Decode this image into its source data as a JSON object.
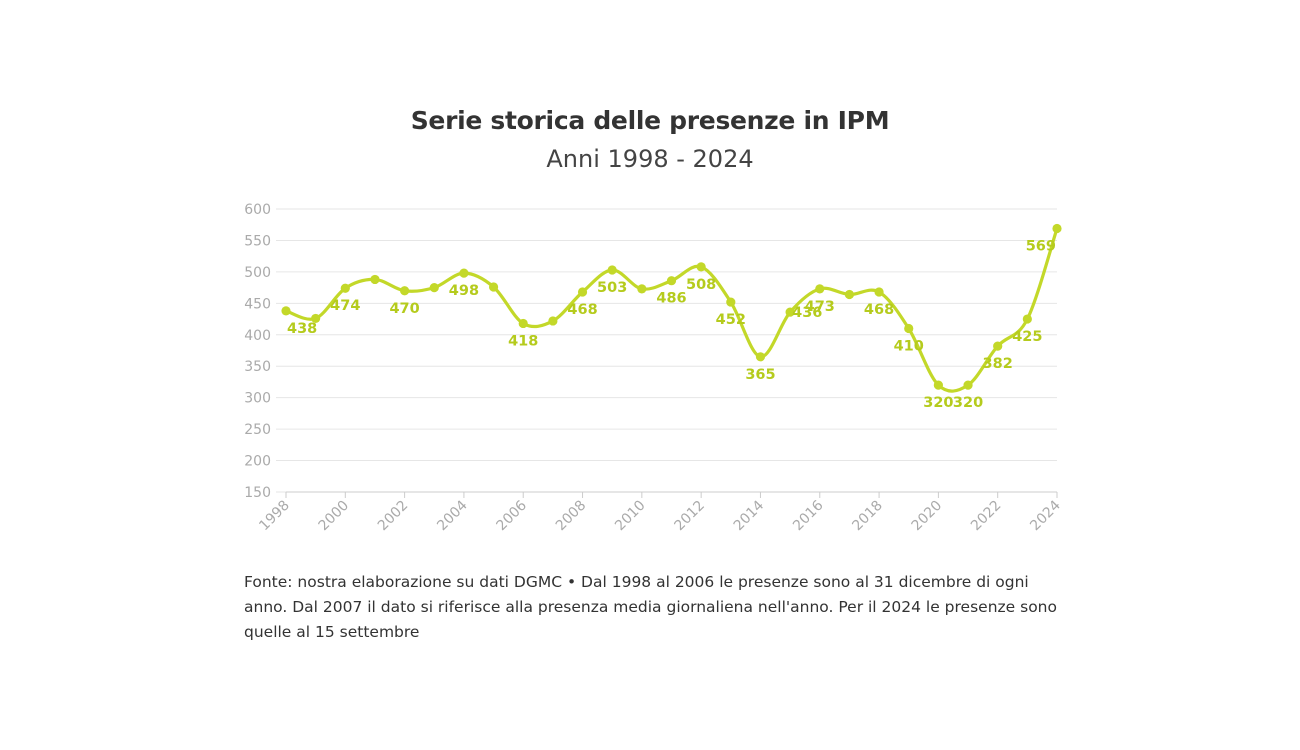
{
  "chart_data": {
    "type": "line",
    "title": "Serie storica delle presenze in IPM",
    "subtitle": "Anni 1998 - 2024",
    "xlabel": "",
    "ylabel": "",
    "x": [
      1998,
      1999,
      2000,
      2001,
      2002,
      2003,
      2004,
      2005,
      2006,
      2007,
      2008,
      2009,
      2010,
      2011,
      2012,
      2013,
      2014,
      2015,
      2016,
      2017,
      2018,
      2019,
      2020,
      2021,
      2022,
      2023,
      2024
    ],
    "series": [
      {
        "values": [
          438,
          426,
          474,
          488,
          470,
          475,
          498,
          476,
          418,
          422,
          468,
          503,
          473,
          486,
          508,
          452,
          365,
          436,
          473,
          464,
          468,
          410,
          320,
          320,
          382,
          425,
          569
        ]
      }
    ],
    "data_labels": [
      {
        "year": 1998,
        "text": "438",
        "pos": "below"
      },
      {
        "year": 2000,
        "text": "474",
        "pos": "below"
      },
      {
        "year": 2002,
        "text": "470",
        "pos": "below"
      },
      {
        "year": 2004,
        "text": "498",
        "pos": "below"
      },
      {
        "year": 2006,
        "text": "418",
        "pos": "below"
      },
      {
        "year": 2008,
        "text": "468",
        "pos": "below"
      },
      {
        "year": 2009,
        "text": "503",
        "pos": "below"
      },
      {
        "year": 2011,
        "text": "486",
        "pos": "below"
      },
      {
        "year": 2012,
        "text": "508",
        "pos": "below"
      },
      {
        "year": 2013,
        "text": "452",
        "pos": "below"
      },
      {
        "year": 2014,
        "text": "365",
        "pos": "below"
      },
      {
        "year": 2015,
        "text": "436",
        "pos": "right"
      },
      {
        "year": 2016,
        "text": "473",
        "pos": "below"
      },
      {
        "year": 2018,
        "text": "468",
        "pos": "below"
      },
      {
        "year": 2019,
        "text": "410",
        "pos": "below"
      },
      {
        "year": 2020,
        "text": "320",
        "pos": "below"
      },
      {
        "year": 2021,
        "text": "320",
        "pos": "below"
      },
      {
        "year": 2022,
        "text": "382",
        "pos": "below"
      },
      {
        "year": 2023,
        "text": "425",
        "pos": "below"
      },
      {
        "year": 2024,
        "text": "569",
        "pos": "below"
      }
    ],
    "ylim": [
      150,
      600
    ],
    "yticks": [
      150,
      200,
      250,
      300,
      350,
      400,
      450,
      500,
      550,
      600
    ],
    "xticks": [
      1998,
      2000,
      2002,
      2004,
      2006,
      2008,
      2010,
      2012,
      2014,
      2016,
      2018,
      2020,
      2022,
      2024
    ],
    "grid": true,
    "legend": "none",
    "colors": {
      "line": "#c3d829",
      "label": "#b5cb1d",
      "grid": "#e6e6e6",
      "axis": "#cccccc",
      "tick_label": "#aaaaaa"
    }
  },
  "footnote": "Fonte: nostra elaborazione su dati DGMC • Dal 1998 al 2006 le presenze sono al 31 dicembre di ogni anno. Dal 2007 il dato si riferisce alla presenza media giornaliena nell'anno. Per il 2024 le presenze sono quelle al 15 settembre"
}
